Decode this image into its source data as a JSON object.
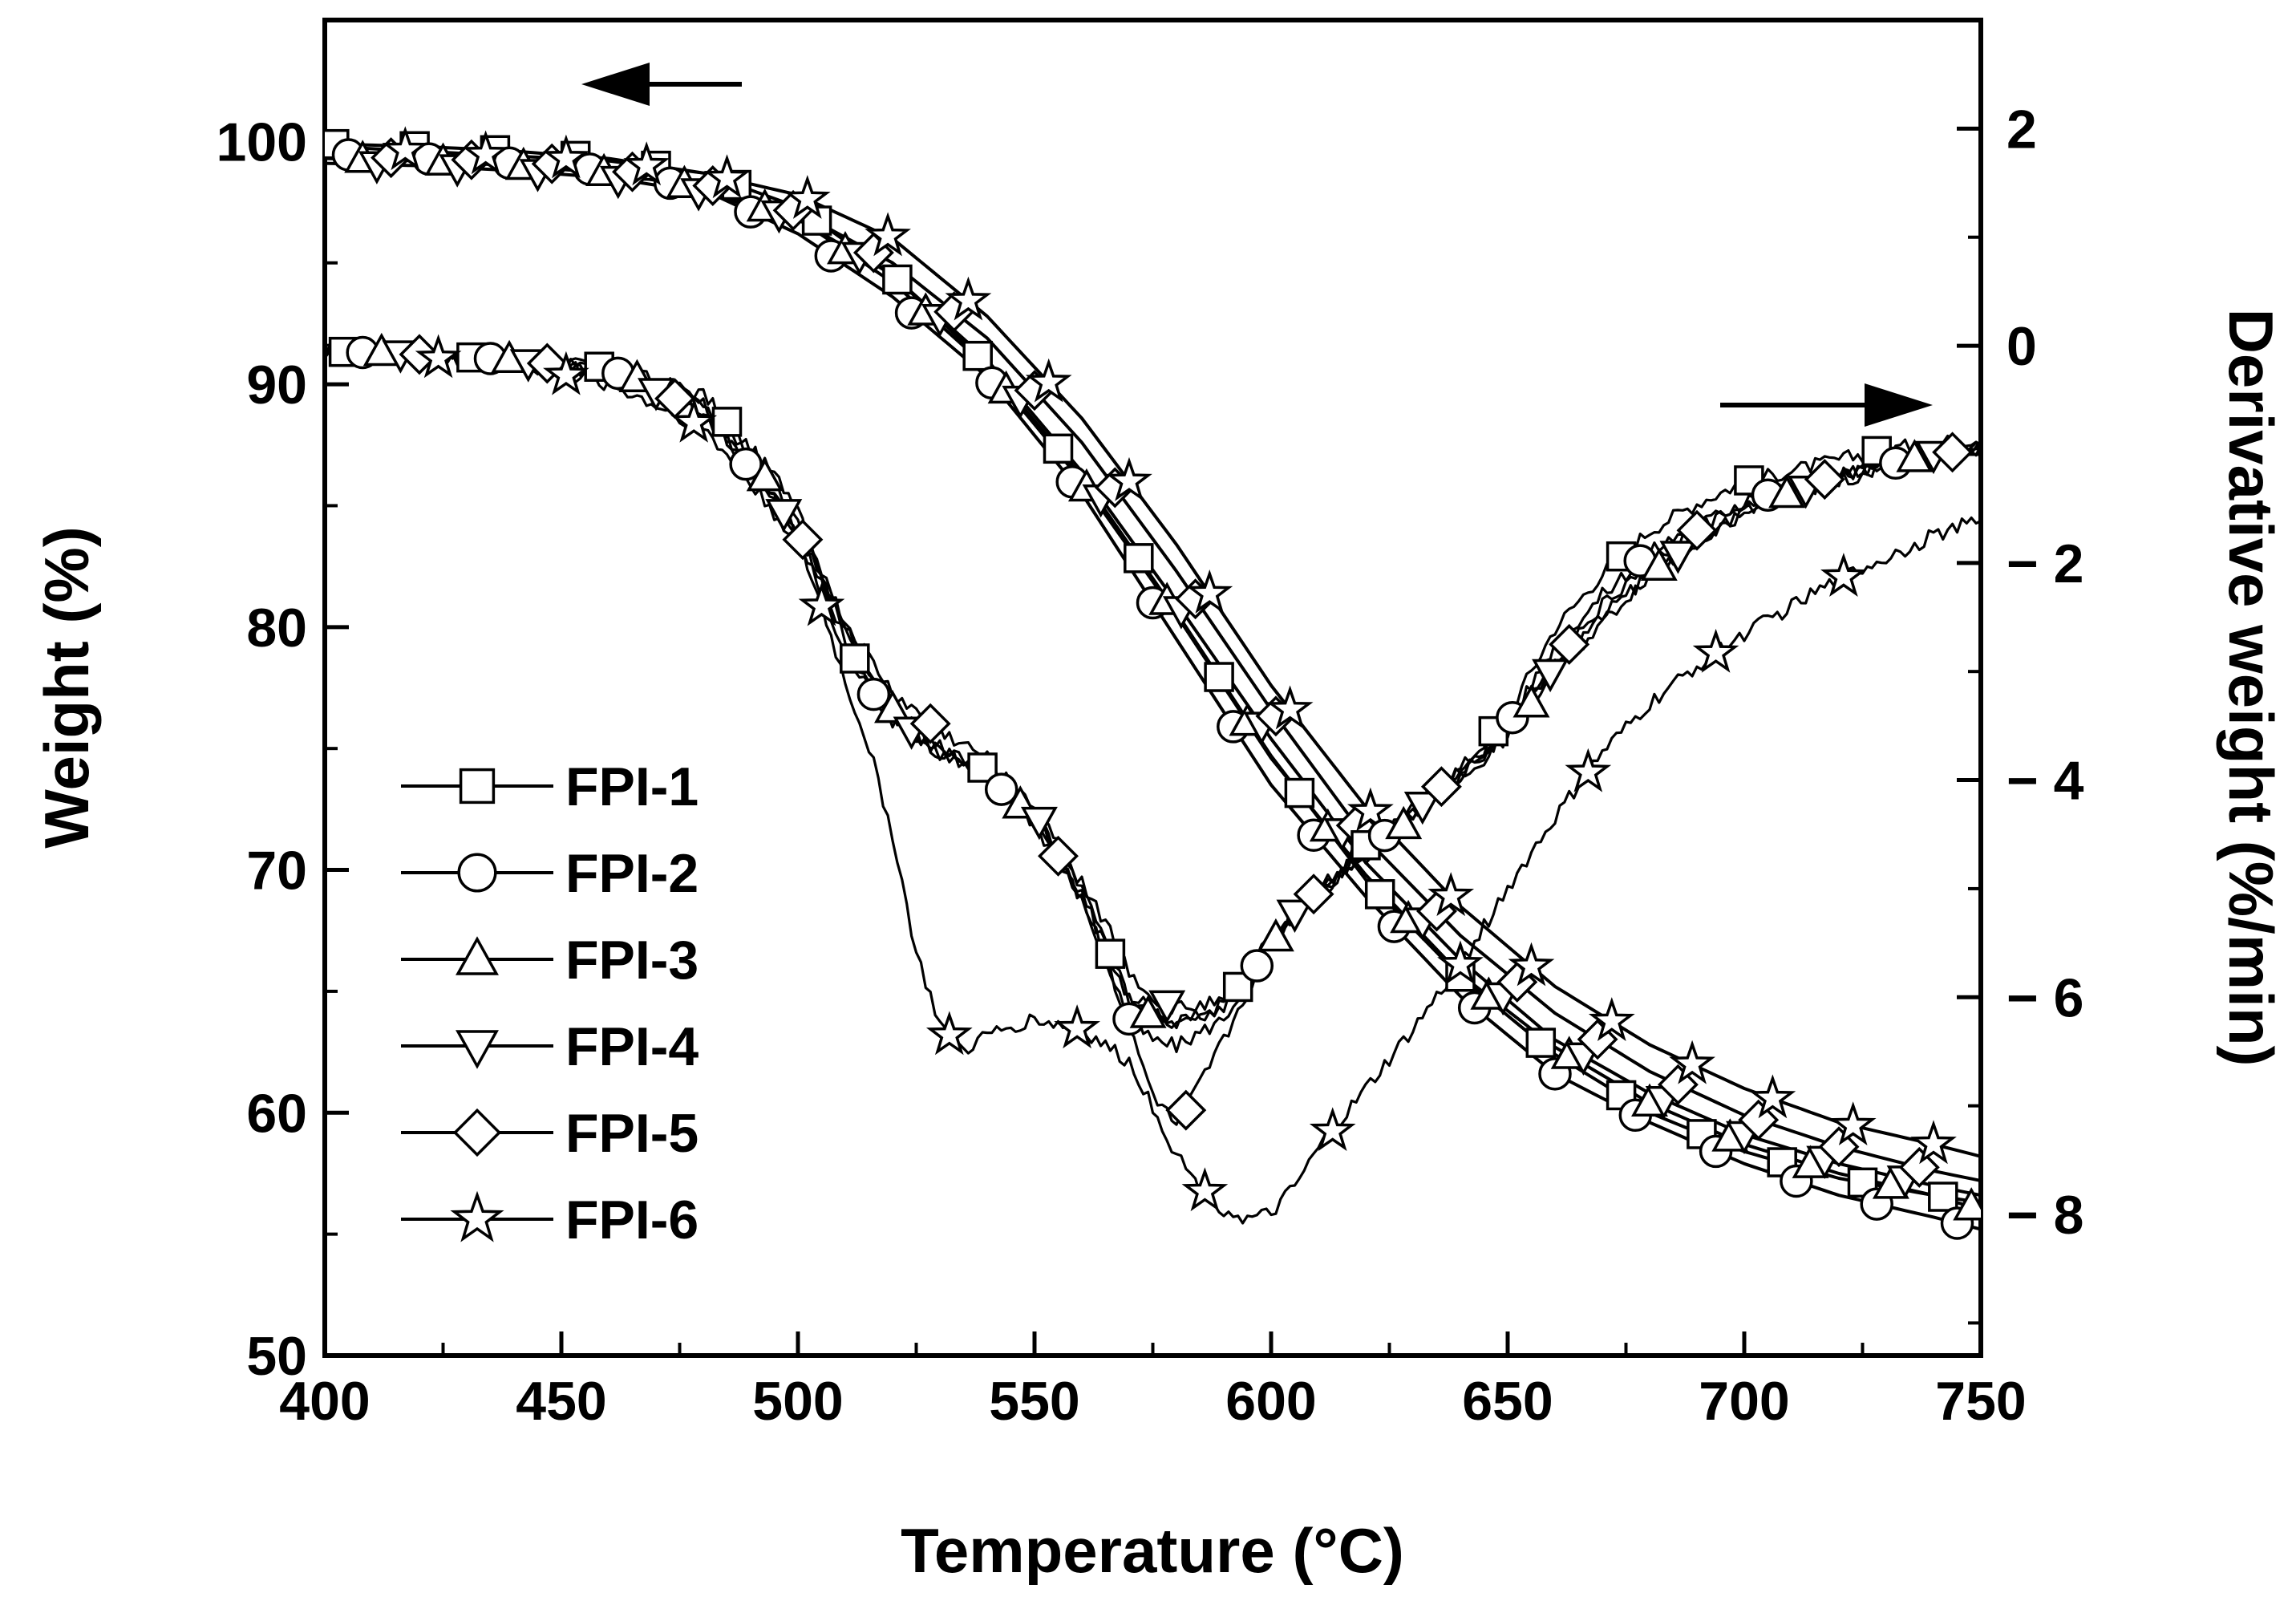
{
  "chart_data": {
    "type": "line",
    "title": "",
    "xlabel": "Temperature (°C)",
    "ylabel_left": "Weight (%)",
    "ylabel_right": "Derivative weight (%/min)",
    "xlim": [
      400,
      750
    ],
    "ylim_left": [
      50,
      105
    ],
    "ylim_right": [
      -9.3,
      3.0
    ],
    "x_ticks": [
      400,
      450,
      500,
      550,
      600,
      650,
      700,
      750
    ],
    "x_tick_labels": [
      "400",
      "450",
      "500",
      "550",
      "600",
      "650",
      "700",
      "750"
    ],
    "y_left_ticks": [
      50,
      60,
      70,
      80,
      90,
      100
    ],
    "y_left_tick_labels": [
      "50",
      "60",
      "70",
      "80",
      "90",
      "100"
    ],
    "y_right_ticks": [
      2,
      0,
      -2,
      -4,
      -6,
      -8
    ],
    "y_right_tick_labels": [
      "2",
      "0",
      "− 2",
      "− 4",
      "− 6",
      "− 8"
    ],
    "legend_position": "center-left",
    "arrow_left_hint": "weight curves → left axis",
    "arrow_right_hint": "derivative curves → right axis",
    "tga_series": [
      {
        "name": "FPI-1",
        "marker": "square",
        "x": [
          400,
          420,
          440,
          460,
          480,
          500,
          520,
          540,
          560,
          580,
          600,
          620,
          640,
          660,
          680,
          700,
          720,
          740,
          750
        ],
        "y": [
          99.9,
          99.8,
          99.6,
          99.3,
          98.7,
          97.3,
          94.5,
          90.8,
          86.2,
          80.6,
          74.7,
          69.6,
          65.6,
          62.4,
          60.0,
          58.4,
          57.3,
          56.6,
          56.3
        ]
      },
      {
        "name": "FPI-2",
        "marker": "circle",
        "x": [
          400,
          420,
          440,
          460,
          480,
          500,
          520,
          540,
          560,
          580,
          600,
          620,
          640,
          660,
          680,
          700,
          720,
          740,
          750
        ],
        "y": [
          99.5,
          99.3,
          99.1,
          98.8,
          98.0,
          96.2,
          93.6,
          90.3,
          85.5,
          79.5,
          73.5,
          68.9,
          64.8,
          61.6,
          59.6,
          57.9,
          56.6,
          55.7,
          55.2
        ]
      },
      {
        "name": "FPI-3",
        "marker": "triangle-up",
        "x": [
          400,
          420,
          440,
          460,
          480,
          500,
          520,
          540,
          560,
          580,
          600,
          620,
          640,
          660,
          680,
          700,
          720,
          740,
          750
        ],
        "y": [
          99.3,
          99.2,
          99.0,
          98.7,
          98.1,
          96.8,
          94.2,
          90.7,
          86.0,
          80.5,
          74.6,
          69.8,
          65.7,
          62.7,
          60.4,
          58.7,
          57.5,
          56.6,
          56.0
        ]
      },
      {
        "name": "FPI-4",
        "marker": "triangle-down",
        "x": [
          400,
          420,
          440,
          460,
          480,
          500,
          520,
          540,
          560,
          580,
          600,
          620,
          640,
          660,
          680,
          700,
          720,
          740,
          750
        ],
        "y": [
          99.1,
          99.0,
          98.8,
          98.5,
          97.9,
          96.8,
          94.5,
          91.0,
          86.4,
          81.0,
          75.4,
          70.3,
          66.3,
          63.0,
          60.8,
          59.1,
          57.9,
          57.0,
          56.6
        ]
      },
      {
        "name": "FPI-5",
        "marker": "diamond",
        "x": [
          400,
          420,
          440,
          460,
          480,
          500,
          520,
          540,
          560,
          580,
          600,
          620,
          640,
          660,
          680,
          700,
          720,
          740,
          750
        ],
        "y": [
          99.4,
          99.3,
          99.2,
          98.9,
          98.3,
          97.1,
          95.0,
          91.9,
          87.6,
          82.3,
          76.6,
          71.3,
          67.3,
          64.1,
          61.7,
          59.9,
          58.6,
          57.6,
          57.2
        ]
      },
      {
        "name": "FPI-6",
        "marker": "star",
        "x": [
          400,
          420,
          440,
          460,
          480,
          500,
          520,
          540,
          560,
          580,
          600,
          620,
          640,
          660,
          680,
          700,
          720,
          740,
          750
        ],
        "y": [
          99.8,
          99.6,
          99.4,
          99.2,
          98.7,
          97.8,
          96.0,
          92.8,
          88.6,
          83.4,
          77.6,
          72.6,
          68.5,
          65.2,
          62.8,
          61.0,
          59.6,
          58.7,
          58.2
        ]
      }
    ],
    "dtg_series": [
      {
        "name": "FPI-1",
        "marker": "square",
        "x": [
          400,
          420,
          440,
          460,
          480,
          500,
          510,
          520,
          530,
          540,
          550,
          560,
          565,
          570,
          575,
          580,
          590,
          600,
          610,
          620,
          630,
          640,
          650,
          660,
          670,
          680,
          690,
          700,
          710,
          720,
          730,
          740,
          750
        ],
        "y": [
          -0.05,
          -0.08,
          -0.13,
          -0.2,
          -0.45,
          -1.45,
          -2.75,
          -3.4,
          -3.75,
          -3.9,
          -4.25,
          -4.95,
          -5.5,
          -6.0,
          -6.1,
          -6.25,
          -6.1,
          -5.45,
          -5.0,
          -4.6,
          -4.25,
          -3.9,
          -3.4,
          -2.6,
          -2.1,
          -1.7,
          -1.45,
          -1.25,
          -1.15,
          -1.05,
          -0.95,
          -0.9,
          -0.85
        ]
      },
      {
        "name": "FPI-2",
        "marker": "circle",
        "x": [
          400,
          420,
          440,
          460,
          480,
          500,
          510,
          520,
          530,
          540,
          550,
          560,
          565,
          570,
          575,
          580,
          590,
          600,
          610,
          620,
          630,
          640,
          650,
          660,
          670,
          680,
          690,
          700,
          710,
          720,
          730,
          740,
          750
        ],
        "y": [
          -0.05,
          -0.08,
          -0.13,
          -0.22,
          -0.55,
          -1.75,
          -2.85,
          -3.45,
          -3.75,
          -3.95,
          -4.4,
          -5.1,
          -5.65,
          -6.2,
          -6.4,
          -6.45,
          -6.2,
          -5.5,
          -5.05,
          -4.65,
          -4.3,
          -3.95,
          -3.5,
          -2.75,
          -2.3,
          -1.9,
          -1.65,
          -1.45,
          -1.3,
          -1.2,
          -1.1,
          -1.0,
          -0.95
        ]
      },
      {
        "name": "FPI-3",
        "marker": "triangle-up",
        "x": [
          400,
          420,
          440,
          460,
          480,
          500,
          510,
          520,
          530,
          540,
          550,
          560,
          565,
          570,
          575,
          580,
          590,
          600,
          610,
          620,
          630,
          640,
          650,
          660,
          670,
          680,
          690,
          700,
          710,
          720,
          730,
          740,
          750
        ],
        "y": [
          -0.05,
          -0.07,
          -0.13,
          -0.22,
          -0.5,
          -1.6,
          -2.6,
          -3.35,
          -3.7,
          -3.95,
          -4.35,
          -5.05,
          -5.55,
          -6.0,
          -6.2,
          -6.3,
          -6.05,
          -5.5,
          -5.05,
          -4.7,
          -4.35,
          -4.0,
          -3.6,
          -3.0,
          -2.55,
          -2.1,
          -1.8,
          -1.55,
          -1.35,
          -1.2,
          -1.1,
          -1.0,
          -0.95
        ]
      },
      {
        "name": "FPI-4",
        "marker": "triangle-down",
        "x": [
          400,
          420,
          440,
          460,
          480,
          500,
          510,
          520,
          530,
          540,
          550,
          560,
          565,
          570,
          575,
          580,
          590,
          600,
          610,
          620,
          630,
          640,
          650,
          660,
          670,
          680,
          690,
          700,
          710,
          720,
          730,
          740,
          750
        ],
        "y": [
          -0.05,
          -0.08,
          -0.14,
          -0.24,
          -0.6,
          -1.7,
          -2.6,
          -3.4,
          -3.75,
          -3.95,
          -4.3,
          -5.0,
          -5.3,
          -5.75,
          -6.0,
          -6.1,
          -6.05,
          -5.45,
          -5.0,
          -4.65,
          -4.3,
          -3.95,
          -3.55,
          -2.95,
          -2.5,
          -2.1,
          -1.8,
          -1.55,
          -1.35,
          -1.25,
          -1.1,
          -1.0,
          -0.95
        ]
      },
      {
        "name": "FPI-5",
        "marker": "diamond",
        "x": [
          400,
          420,
          440,
          460,
          480,
          500,
          510,
          520,
          530,
          540,
          550,
          560,
          565,
          570,
          575,
          580,
          590,
          600,
          610,
          620,
          630,
          640,
          650,
          660,
          670,
          680,
          690,
          700,
          710,
          720,
          730,
          740,
          750
        ],
        "y": [
          -0.05,
          -0.08,
          -0.13,
          -0.22,
          -0.6,
          -1.7,
          -2.55,
          -3.2,
          -3.55,
          -3.8,
          -4.3,
          -5.1,
          -5.6,
          -6.3,
          -6.9,
          -7.2,
          -6.4,
          -5.5,
          -5.0,
          -4.65,
          -4.3,
          -3.9,
          -3.5,
          -2.9,
          -2.4,
          -2.0,
          -1.7,
          -1.45,
          -1.3,
          -1.2,
          -1.1,
          -1.0,
          -0.95
        ]
      },
      {
        "name": "FPI-6",
        "marker": "star",
        "x": [
          400,
          420,
          440,
          460,
          480,
          500,
          505,
          510,
          515,
          520,
          525,
          530,
          535,
          540,
          550,
          560,
          570,
          575,
          580,
          585,
          590,
          595,
          600,
          605,
          610,
          620,
          630,
          640,
          650,
          660,
          670,
          680,
          690,
          700,
          710,
          720,
          730,
          740,
          750
        ],
        "y": [
          -0.05,
          -0.1,
          -0.18,
          -0.35,
          -0.75,
          -1.8,
          -2.4,
          -3.1,
          -3.7,
          -4.5,
          -5.6,
          -6.25,
          -6.5,
          -6.35,
          -6.2,
          -6.3,
          -6.6,
          -7.0,
          -7.45,
          -7.75,
          -7.95,
          -8.05,
          -8.0,
          -7.75,
          -7.4,
          -6.85,
          -6.3,
          -5.7,
          -5.0,
          -4.35,
          -3.75,
          -3.3,
          -2.95,
          -2.65,
          -2.4,
          -2.15,
          -1.95,
          -1.75,
          -1.6
        ]
      }
    ],
    "legend": [
      "FPI-1",
      "FPI-2",
      "FPI-3",
      "FPI-4",
      "FPI-5",
      "FPI-6"
    ]
  }
}
